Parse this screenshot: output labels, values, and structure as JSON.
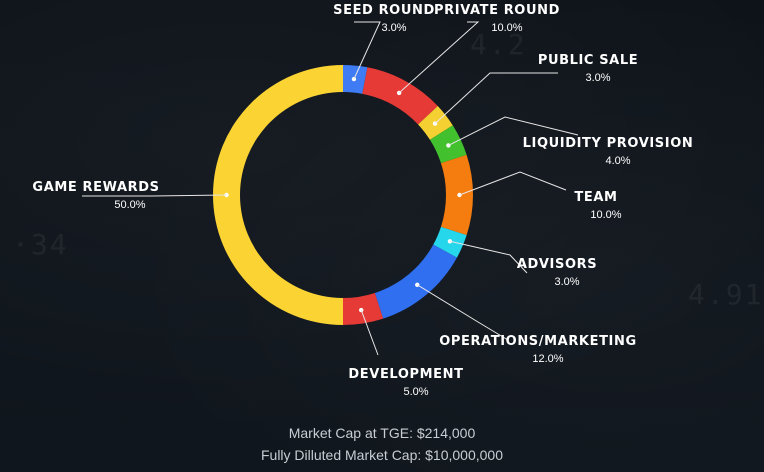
{
  "chart_data": {
    "type": "pie",
    "donut": true,
    "title": "",
    "slices": [
      {
        "name": "SEED ROUND",
        "value": 3.0,
        "label": "3.0%",
        "color": "#3f7bf2"
      },
      {
        "name": "PRIVATE ROUND",
        "value": 10.0,
        "label": "10.0%",
        "color": "#e53a36"
      },
      {
        "name": "PUBLIC SALE",
        "value": 3.0,
        "label": "3.0%",
        "color": "#f5d033"
      },
      {
        "name": "LIQUIDITY PROVISION",
        "value": 4.0,
        "label": "4.0%",
        "color": "#42c02e"
      },
      {
        "name": "TEAM",
        "value": 10.0,
        "label": "10.0%",
        "color": "#f57c0e"
      },
      {
        "name": "ADVISORS",
        "value": 3.0,
        "label": "3.0%",
        "color": "#26d6ea"
      },
      {
        "name": "OPERATIONS/MARKETING",
        "value": 12.0,
        "label": "12.0%",
        "color": "#2f6ff0"
      },
      {
        "name": "DEVELOPMENT",
        "value": 5.0,
        "label": "5.0%",
        "color": "#e53a36"
      },
      {
        "name": "GAME REWARDS",
        "value": 50.0,
        "label": "50.0%",
        "color": "#fbd434"
      }
    ],
    "legend": "none"
  },
  "footer": {
    "market_cap_tge": "Market Cap at TGE: $214,000",
    "fully_diluted_cap": "Fully Dilluted Market Cap: $10,000,000"
  }
}
